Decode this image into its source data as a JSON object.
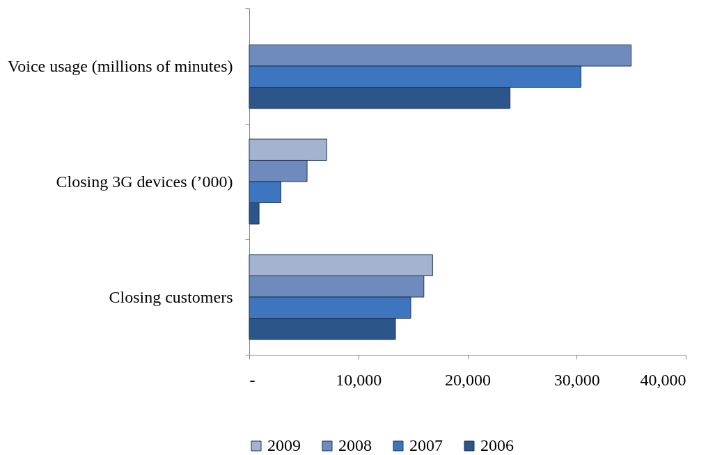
{
  "chart_data": {
    "type": "bar",
    "orientation": "horizontal",
    "categories": [
      "Voice usage (millions of minutes)",
      "Closing 3G devices (’000)",
      "Closing customers"
    ],
    "series": [
      {
        "name": "2009",
        "color": "#a3b3d0",
        "values": [
          null,
          7100,
          16800
        ]
      },
      {
        "name": "2008",
        "color": "#6f8bbd",
        "values": [
          35000,
          5300,
          16000
        ]
      },
      {
        "name": "2007",
        "color": "#3d76bf",
        "values": [
          30400,
          2900,
          14800
        ]
      },
      {
        "name": "2006",
        "color": "#2c5589",
        "values": [
          23900,
          900,
          13400
        ]
      }
    ],
    "xlim": [
      0,
      40000
    ],
    "xticks": [
      {
        "value": 0,
        "label": "-"
      },
      {
        "value": 10000,
        "label": "10,000"
      },
      {
        "value": 20000,
        "label": "20,000"
      },
      {
        "value": 30000,
        "label": "30,000"
      },
      {
        "value": 40000,
        "label": "40,000"
      }
    ],
    "legend": "bottom"
  }
}
